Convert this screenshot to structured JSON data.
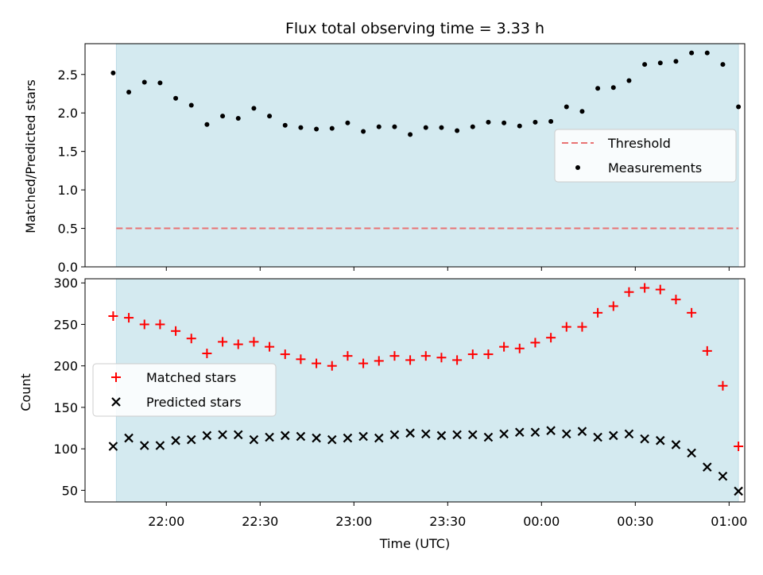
{
  "chart_data": {
    "type": "scatter",
    "title": "Flux total observing time = 3.33 h",
    "xlabel": "Time (UTC)",
    "x_tick_labels": [
      "22:00",
      "22:30",
      "23:00",
      "23:30",
      "00:00",
      "00:30",
      "01:00"
    ],
    "x_ticks_minutes": [
      1320,
      1350,
      1380,
      1410,
      1440,
      1470,
      1500
    ],
    "xlim_minutes": [
      1294,
      1505
    ],
    "observing_window_minutes": [
      1304,
      1503
    ],
    "observing_window_color": "#d4eaf0",
    "times": [
      "21:43",
      "21:48",
      "21:53",
      "21:58",
      "22:03",
      "22:08",
      "22:13",
      "22:18",
      "22:23",
      "22:28",
      "22:33",
      "22:38",
      "22:43",
      "22:48",
      "22:53",
      "22:58",
      "23:03",
      "23:08",
      "23:13",
      "23:18",
      "23:23",
      "23:28",
      "23:33",
      "23:38",
      "23:43",
      "23:48",
      "23:53",
      "23:58",
      "00:03",
      "00:08",
      "00:13",
      "00:18",
      "00:23",
      "00:28",
      "00:33",
      "00:38",
      "00:43",
      "00:48",
      "00:53",
      "00:58",
      "01:03"
    ],
    "times_minutes": [
      1303,
      1308,
      1313,
      1318,
      1323,
      1328,
      1333,
      1338,
      1343,
      1348,
      1353,
      1358,
      1363,
      1368,
      1373,
      1378,
      1383,
      1388,
      1393,
      1398,
      1403,
      1408,
      1413,
      1418,
      1423,
      1428,
      1433,
      1438,
      1443,
      1448,
      1453,
      1458,
      1463,
      1468,
      1473,
      1478,
      1483,
      1488,
      1493,
      1498,
      1503
    ],
    "panels": [
      {
        "ylabel": "Matched/Predicted stars",
        "ylim": [
          0,
          2.9
        ],
        "y_ticks": [
          0.0,
          0.5,
          1.0,
          1.5,
          2.0,
          2.5
        ],
        "y_tick_labels": [
          "0.0",
          "0.5",
          "1.0",
          "1.5",
          "2.0",
          "2.5"
        ],
        "legend_position": "center-right",
        "series": [
          {
            "name": "Threshold",
            "style": "dashed-line",
            "color": "#e97373",
            "value": 0.5
          },
          {
            "name": "Measurements",
            "style": "dot",
            "color": "#000000",
            "values": [
              2.52,
              2.27,
              2.4,
              2.39,
              2.19,
              2.1,
              1.85,
              1.96,
              1.93,
              2.06,
              1.96,
              1.84,
              1.81,
              1.79,
              1.8,
              1.87,
              1.76,
              1.82,
              1.82,
              1.72,
              1.81,
              1.81,
              1.77,
              1.82,
              1.88,
              1.87,
              1.83,
              1.88,
              1.89,
              2.08,
              2.02,
              2.32,
              2.33,
              2.42,
              2.63,
              2.65,
              2.67,
              2.78,
              2.78,
              2.63,
              2.08
            ]
          }
        ]
      },
      {
        "ylabel": "Count",
        "ylim": [
          36,
          305
        ],
        "y_ticks": [
          50,
          100,
          150,
          200,
          250,
          300
        ],
        "y_tick_labels": [
          "50",
          "100",
          "150",
          "200",
          "250",
          "300"
        ],
        "legend_position": "center-left",
        "series": [
          {
            "name": "Matched stars",
            "style": "plus",
            "color": "#ff0000",
            "values": [
              260,
              258,
              250,
              250,
              242,
              233,
              215,
              229,
              226,
              229,
              223,
              214,
              208,
              203,
              200,
              212,
              203,
              206,
              212,
              207,
              212,
              210,
              207,
              214,
              214,
              223,
              221,
              228,
              234,
              247,
              247,
              264,
              272,
              289,
              294,
              292,
              280,
              264,
              218,
              176,
              103
            ]
          },
          {
            "name": "Predicted stars",
            "style": "cross",
            "color": "#000000",
            "values": [
              103,
              113,
              104,
              104,
              110,
              111,
              116,
              117,
              117,
              111,
              114,
              116,
              115,
              113,
              111,
              113,
              115,
              113,
              117,
              119,
              118,
              116,
              117,
              117,
              114,
              118,
              120,
              120,
              122,
              118,
              121,
              114,
              116,
              118,
              112,
              110,
              105,
              95,
              78,
              67,
              49
            ]
          }
        ]
      }
    ]
  }
}
